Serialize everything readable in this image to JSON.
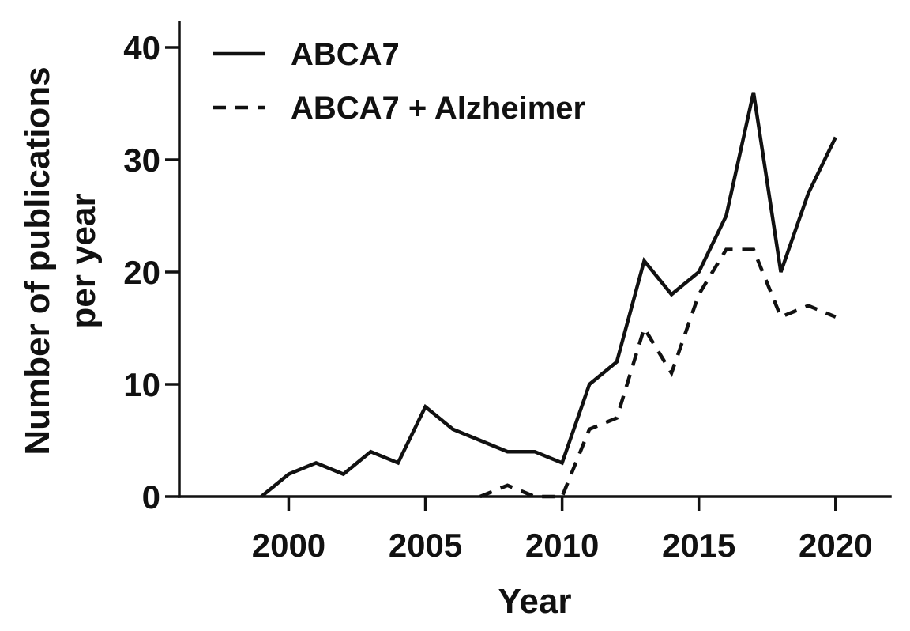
{
  "chart_data": {
    "type": "line",
    "title": "",
    "xlabel": "Year",
    "ylabel": "Number of publications per year",
    "ylabel_lines": [
      "Number of publications",
      "per year"
    ],
    "xlim": [
      1996,
      2022
    ],
    "ylim": [
      0,
      42
    ],
    "xticks": [
      2000,
      2005,
      2010,
      2015,
      2020
    ],
    "yticks": [
      0,
      10,
      20,
      30,
      40
    ],
    "grid": false,
    "legend_position": "top-left",
    "series": [
      {
        "name": "ABCA7",
        "style": "solid",
        "color": "#111111",
        "x": [
          1999,
          2000,
          2001,
          2002,
          2003,
          2004,
          2005,
          2006,
          2007,
          2008,
          2009,
          2010,
          2011,
          2012,
          2013,
          2014,
          2015,
          2016,
          2017,
          2018,
          2019,
          2020
        ],
        "values": [
          0,
          2,
          3,
          2,
          4,
          3,
          8,
          6,
          5,
          4,
          4,
          3,
          10,
          12,
          21,
          18,
          20,
          25,
          36,
          20,
          27,
          32
        ]
      },
      {
        "name": "ABCA7 + Alzheimer",
        "style": "dashed",
        "color": "#111111",
        "x": [
          2007,
          2008,
          2009,
          2010,
          2011,
          2012,
          2013,
          2014,
          2015,
          2016,
          2017,
          2018,
          2019,
          2020
        ],
        "values": [
          0,
          1,
          0,
          0,
          6,
          7,
          15,
          11,
          18,
          22,
          22,
          16,
          17,
          16
        ]
      }
    ]
  }
}
